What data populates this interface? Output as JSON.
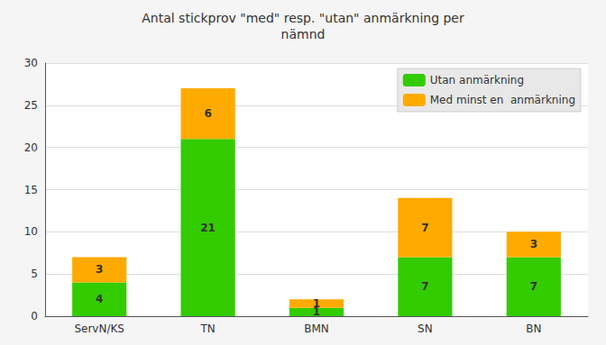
{
  "chart_data": {
    "type": "bar",
    "title": "Antal stickprov \"med\" resp. \"utan\" anmärkning per\nnämnd",
    "categories": [
      "ServN/KS",
      "TN",
      "BMN",
      "SN",
      "BN"
    ],
    "series": [
      {
        "name": "Utan anmärkning",
        "color": "#33cc00",
        "values": [
          4,
          21,
          1,
          7,
          7
        ]
      },
      {
        "name": "Med minst en  anmärkning",
        "color": "#ffaa00",
        "values": [
          3,
          6,
          1,
          7,
          3
        ]
      }
    ],
    "stacked": true,
    "data_labels": true,
    "ylim": [
      0,
      30
    ],
    "yticks": [
      0,
      5,
      10,
      15,
      20,
      25,
      30
    ],
    "grid": true,
    "legend": "upper right"
  }
}
